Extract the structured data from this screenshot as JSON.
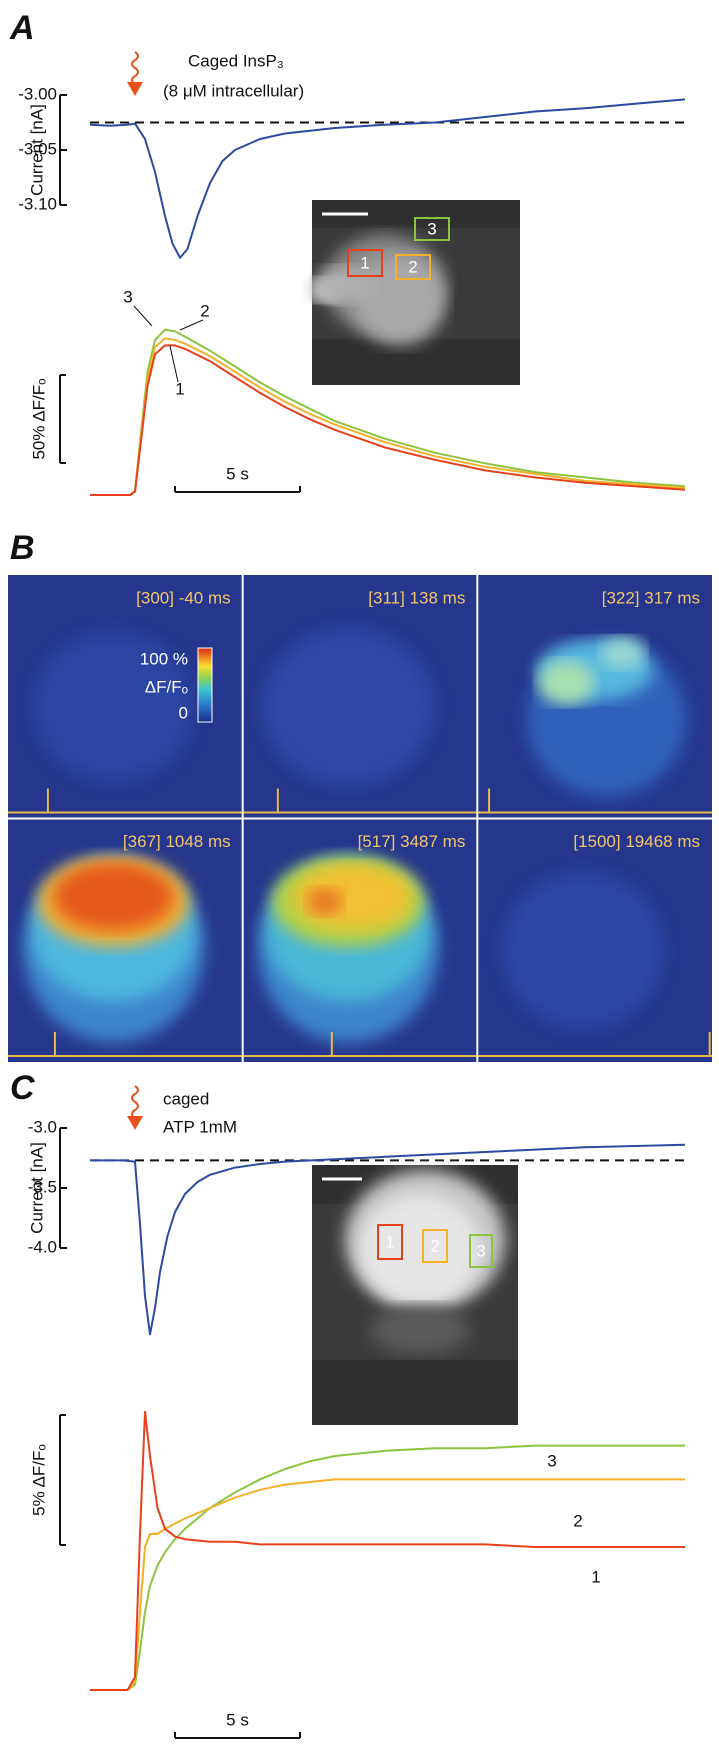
{
  "panel_a": {
    "letter": "A",
    "flash_label": [
      "Caged InsP₃",
      "(8 μM intracellular)"
    ],
    "current": {
      "axis_label": "Current [nA]",
      "ylim": [
        -3.16,
        -2.99
      ],
      "yticks": [
        {
          "value": -3.0,
          "label": "-3.00"
        },
        -3.05,
        {
          "value": -3.1,
          "label": "-3.10"
        }
      ],
      "xlim": [
        -1.8,
        22
      ],
      "baseline": -3.025,
      "color": "#2b4aa0",
      "t": [
        -1.8,
        -1,
        -0.3,
        0,
        0.4,
        0.8,
        1.2,
        1.5,
        1.8,
        2.1,
        2.5,
        3,
        3.5,
        4,
        5,
        6,
        8,
        10,
        12,
        14,
        16,
        18,
        20,
        22
      ],
      "values": [
        -3.027,
        -3.028,
        -3.027,
        -3.026,
        -3.04,
        -3.07,
        -3.11,
        -3.135,
        -3.148,
        -3.14,
        -3.11,
        -3.08,
        -3.06,
        -3.05,
        -3.04,
        -3.035,
        -3.03,
        -3.027,
        -3.025,
        -3.02,
        -3.015,
        -3.012,
        -3.008,
        -3.004
      ]
    },
    "fluorescence": {
      "ylim": [
        0,
        100
      ],
      "xlim": [
        -1.8,
        22
      ],
      "scale_y": {
        "value": 50,
        "label": "50% ΔF/Fₒ"
      },
      "scale_x": {
        "value": 5,
        "label": "5 s"
      },
      "t": [
        -1.8,
        -0.2,
        0,
        0.2,
        0.5,
        0.8,
        1.2,
        1.6,
        2,
        3,
        4,
        5,
        6,
        7,
        8,
        10,
        12,
        14,
        16,
        18,
        20,
        22
      ],
      "series": [
        {
          "name": "1",
          "color": "#e8401c",
          "values": [
            0,
            0,
            2,
            26,
            62,
            80,
            85,
            85,
            83,
            76,
            67,
            58,
            50,
            43,
            37,
            27,
            20,
            14,
            10,
            7,
            5,
            3
          ]
        },
        {
          "name": "2",
          "color": "#f5b02a",
          "values": [
            0,
            0,
            2,
            28,
            66,
            84,
            89,
            88,
            86,
            79,
            70,
            61,
            53,
            46,
            40,
            30,
            22,
            16,
            12,
            8,
            6,
            4
          ]
        },
        {
          "name": "3",
          "color": "#8cc43f",
          "values": [
            0,
            0,
            2,
            30,
            70,
            88,
            94,
            93,
            90,
            82,
            73,
            64,
            56,
            49,
            42,
            32,
            24,
            18,
            13,
            10,
            7,
            5
          ]
        }
      ]
    }
  },
  "panel_b": {
    "letter": "B",
    "frames": [
      "[300] -40 ms",
      "[311] 138 ms",
      "[322] 317 ms",
      "[367] 1048 ms",
      "[517] 3487 ms",
      "[1500] 19468 ms"
    ],
    "colorbar": {
      "max_label": "100 %",
      "title": "ΔF/Fₒ",
      "min_label": "0"
    }
  },
  "panel_c": {
    "letter": "C",
    "flash_label": [
      "caged",
      "ATP 1mM"
    ],
    "current": {
      "axis_label": "Current [nA]",
      "ylim": [
        -4.8,
        -2.9
      ],
      "yticks": [
        {
          "value": -3.0,
          "label": "-3.0"
        },
        -3.5,
        {
          "value": -4.0,
          "label": "-4.0"
        }
      ],
      "xlim": [
        -1.8,
        22
      ],
      "baseline": -3.27,
      "color": "#2b4aa0",
      "t": [
        -1.8,
        -0.5,
        0,
        0.2,
        0.4,
        0.6,
        0.8,
        1,
        1.3,
        1.6,
        2,
        2.5,
        3,
        4,
        5,
        6,
        8,
        10,
        12,
        14,
        16,
        18,
        20,
        22
      ],
      "values": [
        -3.27,
        -3.27,
        -3.28,
        -3.8,
        -4.4,
        -4.72,
        -4.5,
        -4.2,
        -3.9,
        -3.7,
        -3.55,
        -3.45,
        -3.39,
        -3.33,
        -3.3,
        -3.28,
        -3.26,
        -3.24,
        -3.22,
        -3.2,
        -3.18,
        -3.16,
        -3.15,
        -3.14
      ]
    },
    "fluorescence": {
      "ylim": [
        0,
        11
      ],
      "xlim": [
        -1.8,
        22
      ],
      "scale_y": {
        "value": 5,
        "label": "5% ΔF/Fₒ"
      },
      "scale_x": {
        "value": 5,
        "label": "5 s"
      },
      "t": [
        -1.8,
        -0.3,
        0,
        0.2,
        0.4,
        0.6,
        0.9,
        1.2,
        1.6,
        2,
        3,
        4,
        5,
        6,
        7,
        8,
        10,
        12,
        14,
        16,
        18,
        20,
        22
      ],
      "series": [
        {
          "name": "1",
          "color": "#e8401c",
          "values": [
            0,
            0,
            0.5,
            6,
            10.7,
            9,
            7,
            6.2,
            5.9,
            5.8,
            5.7,
            5.7,
            5.6,
            5.6,
            5.6,
            5.6,
            5.6,
            5.6,
            5.6,
            5.5,
            5.5,
            5.5,
            5.5
          ]
        },
        {
          "name": "2",
          "color": "#f5b02a",
          "values": [
            0,
            0,
            0.3,
            3,
            5.5,
            6,
            6,
            6.2,
            6.4,
            6.6,
            7,
            7.4,
            7.7,
            7.9,
            8,
            8.1,
            8.1,
            8.1,
            8.1,
            8.1,
            8.1,
            8.1,
            8.1
          ]
        },
        {
          "name": "3",
          "color": "#8cc43f",
          "values": [
            0,
            0,
            0.2,
            1.5,
            3,
            4,
            4.8,
            5.3,
            5.8,
            6.2,
            7,
            7.6,
            8.1,
            8.5,
            8.8,
            9,
            9.2,
            9.3,
            9.3,
            9.4,
            9.4,
            9.4,
            9.4
          ]
        }
      ]
    }
  }
}
